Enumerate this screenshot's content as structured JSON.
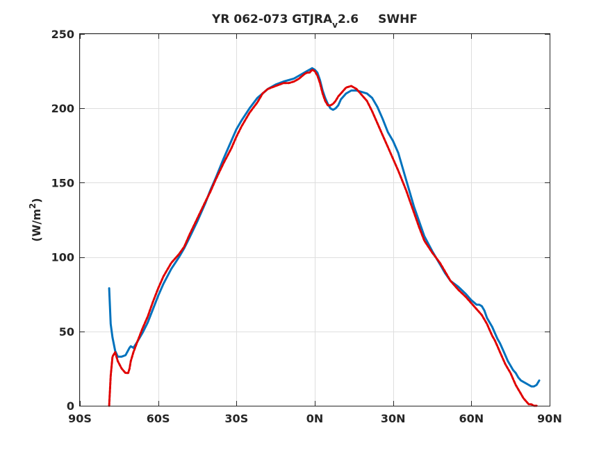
{
  "chart_data": {
    "type": "line",
    "title": {
      "main": "YR 062-073 GTJRA",
      "subscript": "v",
      "rest": "2.6",
      "variable": "SWHF"
    },
    "ylabel": {
      "main": "(W/m",
      "superscript": "2",
      "close": ")"
    },
    "xlabel": "",
    "xlim": [
      -90,
      90
    ],
    "ylim": [
      0,
      250
    ],
    "grid": true,
    "x_ticks": [
      {
        "value": -90,
        "label": "90S"
      },
      {
        "value": -60,
        "label": "60S"
      },
      {
        "value": -30,
        "label": "30S"
      },
      {
        "value": 0,
        "label": "0N"
      },
      {
        "value": 30,
        "label": "30N"
      },
      {
        "value": 60,
        "label": "60N"
      },
      {
        "value": 90,
        "label": "90N"
      }
    ],
    "y_ticks": [
      {
        "value": 0,
        "label": "0"
      },
      {
        "value": 50,
        "label": "50"
      },
      {
        "value": 100,
        "label": "100"
      },
      {
        "value": 150,
        "label": "150"
      },
      {
        "value": 200,
        "label": "200"
      },
      {
        "value": 250,
        "label": "250"
      }
    ],
    "series": [
      {
        "color": "#0072bd",
        "style": "solid",
        "x": [
          -78.8,
          -78.2,
          -77.5,
          -76.5,
          -75.5,
          -74,
          -72.5,
          -71,
          -70.5,
          -69.5,
          -68,
          -66,
          -64,
          -62,
          -60,
          -58,
          -55,
          -52,
          -50,
          -48,
          -45,
          -42,
          -40,
          -38,
          -35,
          -32,
          -30,
          -28,
          -25,
          -22,
          -20,
          -18,
          -15,
          -12,
          -10,
          -8,
          -6,
          -4,
          -3,
          -2,
          -1,
          0,
          1,
          2,
          3,
          4,
          5,
          6,
          7,
          8,
          9,
          10,
          12,
          14,
          16,
          18,
          20,
          22,
          24,
          26,
          28,
          30,
          32,
          35,
          38,
          40,
          42,
          45,
          48,
          50,
          52,
          55,
          58,
          60,
          62,
          63,
          64,
          65,
          66,
          67,
          68,
          69,
          70,
          71,
          72,
          73,
          74,
          75,
          76,
          77,
          78,
          79,
          80,
          81,
          82,
          83,
          84,
          85,
          86
        ],
        "y": [
          79,
          55,
          46,
          37,
          33,
          33,
          34,
          39,
          40,
          39,
          43,
          49,
          56,
          65,
          74,
          82,
          92,
          100,
          106,
          113,
          124,
          136,
          145,
          153,
          166,
          178,
          186,
          192,
          200,
          207,
          210,
          213,
          216,
          218,
          219,
          220,
          222,
          224,
          225,
          226,
          227,
          226,
          224,
          219,
          212,
          207,
          203,
          200,
          199,
          200,
          202,
          206,
          210,
          212,
          212,
          211,
          210,
          207,
          201,
          193,
          184,
          178,
          170,
          152,
          134,
          124,
          114,
          104,
          95,
          89,
          84,
          80,
          75,
          71,
          68,
          68,
          67,
          64,
          59,
          56,
          53,
          49,
          45,
          42,
          38,
          34,
          30,
          27,
          24,
          22,
          19,
          17,
          16,
          15,
          14,
          13,
          13,
          14,
          17
        ]
      },
      {
        "color": "#e00000",
        "style": "dashed",
        "x": [
          -78.8,
          -78.2,
          -77.5,
          -76.5,
          -75.5,
          -74,
          -72.5,
          -71.5,
          -71,
          -70.5,
          -69.5,
          -68,
          -66,
          -64,
          -62,
          -60,
          -58,
          -55,
          -52,
          -50,
          -48,
          -45,
          -42,
          -40,
          -38,
          -35,
          -32,
          -30,
          -28,
          -25,
          -22,
          -20,
          -18,
          -15,
          -12,
          -10,
          -8,
          -6,
          -4,
          -3,
          -2,
          -1,
          0,
          1,
          2,
          3,
          4,
          5,
          6,
          7,
          8,
          9,
          10,
          12,
          14,
          16,
          18,
          20,
          22,
          24,
          26,
          28,
          30,
          32,
          35,
          38,
          40,
          42,
          45,
          48,
          50,
          52,
          55,
          58,
          60,
          62,
          63,
          64,
          65,
          66,
          67,
          68,
          69,
          70,
          71,
          72,
          73,
          74,
          75,
          76,
          77,
          78,
          79,
          80,
          81,
          82,
          83,
          84,
          85
        ],
        "y": [
          0,
          20,
          33,
          36,
          30,
          25,
          22,
          22,
          25,
          30,
          36,
          43,
          52,
          60,
          70,
          79,
          87,
          96,
          102,
          107,
          115,
          126,
          137,
          144,
          152,
          163,
          173,
          181,
          188,
          197,
          204,
          210,
          213,
          215,
          217,
          217,
          218,
          220,
          223,
          224,
          224,
          226,
          225,
          222,
          217,
          210,
          205,
          202,
          202,
          203,
          205,
          208,
          210,
          214,
          215,
          213,
          209,
          205,
          198,
          190,
          182,
          174,
          166,
          158,
          145,
          130,
          120,
          111,
          103,
          96,
          90,
          84,
          78,
          73,
          69,
          65,
          63,
          61,
          58,
          55,
          51,
          47,
          44,
          40,
          36,
          32,
          28,
          25,
          22,
          18,
          14,
          11,
          8,
          5,
          3,
          1,
          1,
          0,
          0
        ]
      }
    ]
  }
}
